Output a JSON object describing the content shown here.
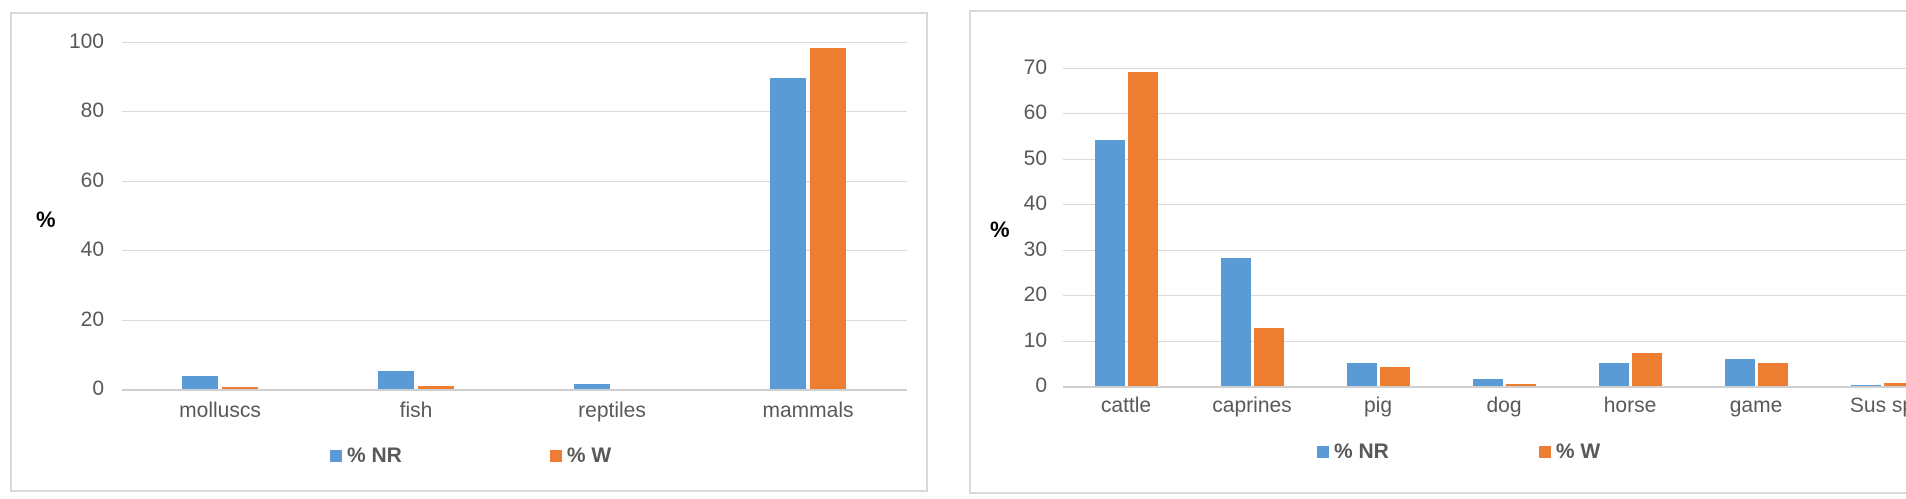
{
  "colors": {
    "nr": "#5B9BD5",
    "w": "#ED7D31",
    "grid": "#D9D9D9",
    "text": "#595959"
  },
  "chart_data": [
    {
      "type": "bar",
      "title": "",
      "xlabel": "",
      "ylabel": "%",
      "ylim": [
        0,
        100
      ],
      "yticks": [
        0,
        20,
        40,
        60,
        80,
        100
      ],
      "grid": true,
      "legend_position": "bottom",
      "categories": [
        "molluscs",
        "fish",
        "reptiles",
        "mammals"
      ],
      "series": [
        {
          "name": "% NR",
          "values": [
            3.8,
            5.2,
            1.5,
            89.6
          ]
        },
        {
          "name": "% W",
          "values": [
            0.5,
            1.0,
            0.0,
            98.3
          ]
        }
      ]
    },
    {
      "type": "bar",
      "title": "",
      "xlabel": "",
      "ylabel": "%",
      "ylim": [
        0,
        70
      ],
      "yticks": [
        0,
        10,
        20,
        30,
        40,
        50,
        60,
        70
      ],
      "grid": true,
      "legend_position": "bottom",
      "categories": [
        "cattle",
        "caprines",
        "pig",
        "dog",
        "horse",
        "game",
        "Sus sp"
      ],
      "series": [
        {
          "name": "% NR",
          "values": [
            54.2,
            28.2,
            5.0,
            1.6,
            5.0,
            5.9,
            0.2
          ]
        },
        {
          "name": "% W",
          "values": [
            69.2,
            12.8,
            4.1,
            0.5,
            7.2,
            5.0,
            0.6
          ]
        }
      ]
    }
  ]
}
